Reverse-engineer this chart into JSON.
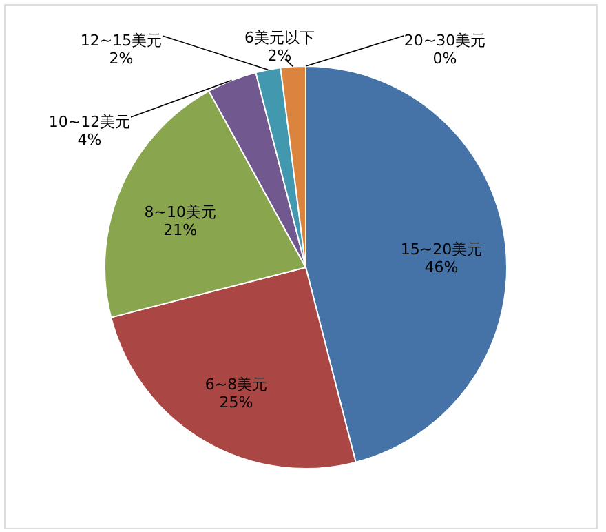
{
  "chart_data": {
    "type": "pie",
    "categories": [
      "15~20美元",
      "6~8美元",
      "8~10美元",
      "10~12美元",
      "12~15美元",
      "6美元以下",
      "20~30美元"
    ],
    "values": [
      46,
      25,
      21,
      4,
      2,
      2,
      0
    ],
    "value_labels": [
      "46%",
      "25%",
      "21%",
      "4%",
      "2%",
      "2%",
      "0%"
    ],
    "colors": [
      "#4572a7",
      "#aa4643",
      "#89a54e",
      "#71588f",
      "#4198af",
      "#db843d",
      "#93a9cf"
    ],
    "legend": false
  }
}
